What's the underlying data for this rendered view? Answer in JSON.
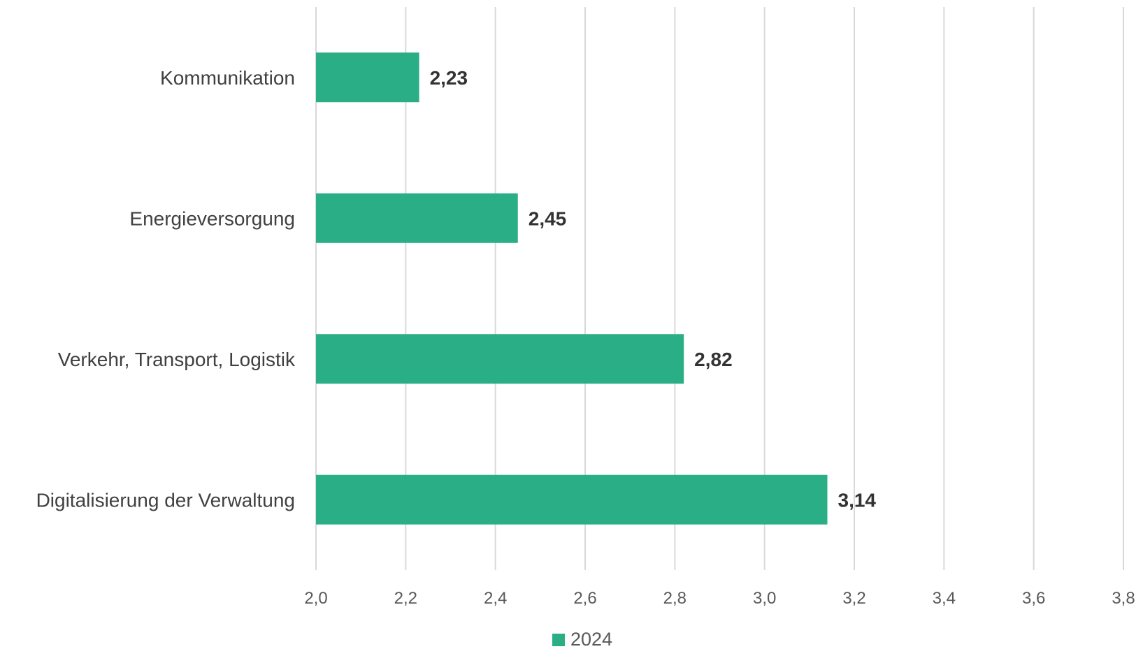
{
  "chart_data": {
    "type": "bar",
    "orientation": "horizontal",
    "categories": [
      "Kommunikation",
      "Energieversorgung",
      "Verkehr, Transport, Logistik",
      "Digitalisierung der Verwaltung"
    ],
    "series": [
      {
        "name": "2024",
        "values": [
          2.23,
          2.45,
          2.82,
          3.14
        ],
        "value_labels": [
          "2,23",
          "2,45",
          "2,82",
          "3,14"
        ],
        "color": "#2aae86"
      }
    ],
    "xlim": [
      2.0,
      3.8
    ],
    "ticks": [
      2.0,
      2.2,
      2.4,
      2.6,
      2.8,
      3.0,
      3.2,
      3.4,
      3.6,
      3.8
    ],
    "tick_labels": [
      "2,0",
      "2,2",
      "2,4",
      "2,6",
      "2,8",
      "3,0",
      "3,2",
      "3,4",
      "3,6",
      "3,8"
    ],
    "grid": true,
    "legend": "bottom",
    "title": "",
    "xlabel": "",
    "ylabel": ""
  },
  "colors": {
    "gridline": "#d9d9d9",
    "bar": "#2aae86"
  }
}
